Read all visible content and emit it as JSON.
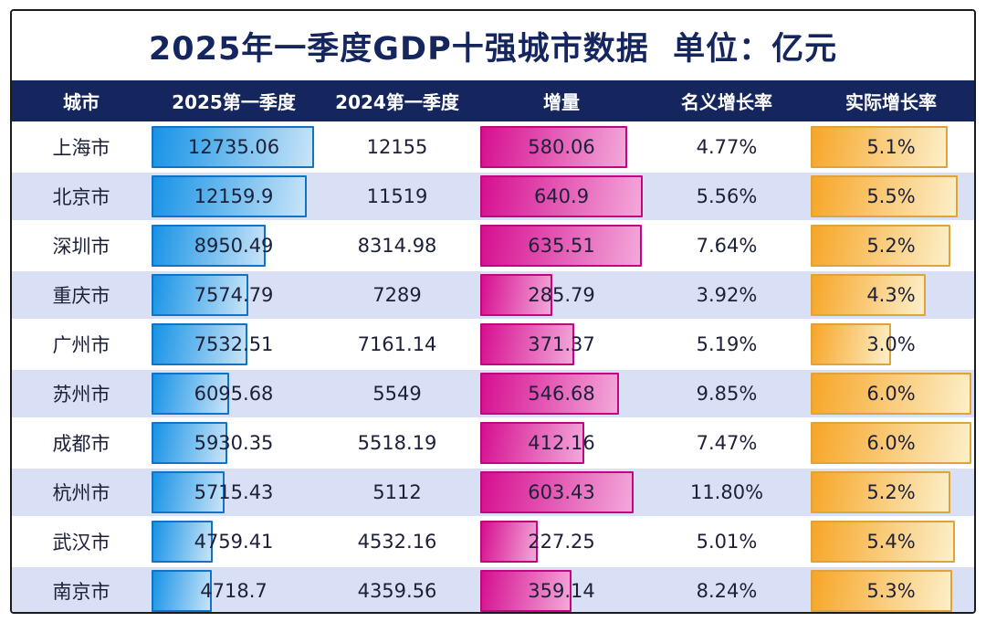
{
  "title": "2025年一季度GDP十强城市数据  单位：亿元",
  "colors": {
    "frame_border": "#1b1b1b",
    "title_text": "#15265e",
    "header_bg": "#15265e",
    "header_text": "#ffffff",
    "row_bg": "#ffffff",
    "row_alt_bg": "#d9e0f6",
    "cell_text": "#1c2038",
    "gdp_bar_start": "#1793e6",
    "gdp_bar_end": "#c8e4f8",
    "gdp_bar_border": "#1272c4",
    "increment_bar_start": "#d60f90",
    "increment_bar_end": "#f3a8da",
    "increment_bar_border": "#c1077f",
    "real_growth_bar_start": "#f7a628",
    "real_growth_bar_end": "#fcefc9",
    "real_growth_bar_border": "#dfa33c"
  },
  "chart_data": {
    "type": "table",
    "title": "2025年一季度GDP十强城市数据",
    "unit": "亿元",
    "legend_position": "none",
    "grid": false,
    "embedded_bars": {
      "gdp_2025": "blue horizontal gradient bar, width proportional to value, max value fills column",
      "increment": "magenta horizontal gradient bar, width proportional to value",
      "real_growth": "orange horizontal gradient bar, width proportional to value"
    },
    "columns": [
      "城市",
      "2025第一季度",
      "2024第一季度",
      "增量",
      "名义增长率",
      "实际增长率"
    ],
    "rows": [
      {
        "city": "上海市",
        "gdp_2025": "12735.06",
        "gdp_2024": "12155",
        "increment": "580.06",
        "nominal_growth": "4.77%",
        "real_growth": "5.1%",
        "gdp_2025_value": 12735.06,
        "increment_value": 580.06,
        "real_growth_value": 5.1
      },
      {
        "city": "北京市",
        "gdp_2025": "12159.9",
        "gdp_2024": "11519",
        "increment": "640.9",
        "nominal_growth": "5.56%",
        "real_growth": "5.5%",
        "gdp_2025_value": 12159.9,
        "increment_value": 640.9,
        "real_growth_value": 5.5
      },
      {
        "city": "深圳市",
        "gdp_2025": "8950.49",
        "gdp_2024": "8314.98",
        "increment": "635.51",
        "nominal_growth": "7.64%",
        "real_growth": "5.2%",
        "gdp_2025_value": 8950.49,
        "increment_value": 635.51,
        "real_growth_value": 5.2
      },
      {
        "city": "重庆市",
        "gdp_2025": "7574.79",
        "gdp_2024": "7289",
        "increment": "285.79",
        "nominal_growth": "3.92%",
        "real_growth": "4.3%",
        "gdp_2025_value": 7574.79,
        "increment_value": 285.79,
        "real_growth_value": 4.3
      },
      {
        "city": "广州市",
        "gdp_2025": "7532.51",
        "gdp_2024": "7161.14",
        "increment": "371.37",
        "nominal_growth": "5.19%",
        "real_growth": "3.0%",
        "gdp_2025_value": 7532.51,
        "increment_value": 371.37,
        "real_growth_value": 3.0
      },
      {
        "city": "苏州市",
        "gdp_2025": "6095.68",
        "gdp_2024": "5549",
        "increment": "546.68",
        "nominal_growth": "9.85%",
        "real_growth": "6.0%",
        "gdp_2025_value": 6095.68,
        "increment_value": 546.68,
        "real_growth_value": 6.0
      },
      {
        "city": "成都市",
        "gdp_2025": "5930.35",
        "gdp_2024": "5518.19",
        "increment": "412.16",
        "nominal_growth": "7.47%",
        "real_growth": "6.0%",
        "gdp_2025_value": 5930.35,
        "increment_value": 412.16,
        "real_growth_value": 6.0
      },
      {
        "city": "杭州市",
        "gdp_2025": "5715.43",
        "gdp_2024": "5112",
        "increment": "603.43",
        "nominal_growth": "11.80%",
        "real_growth": "5.2%",
        "gdp_2025_value": 5715.43,
        "increment_value": 603.43,
        "real_growth_value": 5.2
      },
      {
        "city": "武汉市",
        "gdp_2025": "4759.41",
        "gdp_2024": "4532.16",
        "increment": "227.25",
        "nominal_growth": "5.01%",
        "real_growth": "5.4%",
        "gdp_2025_value": 4759.41,
        "increment_value": 227.25,
        "real_growth_value": 5.4
      },
      {
        "city": "南京市",
        "gdp_2025": "4718.7",
        "gdp_2024": "4359.56",
        "increment": "359.14",
        "nominal_growth": "8.24%",
        "real_growth": "5.3%",
        "gdp_2025_value": 4718.7,
        "increment_value": 359.14,
        "real_growth_value": 5.3
      }
    ]
  }
}
